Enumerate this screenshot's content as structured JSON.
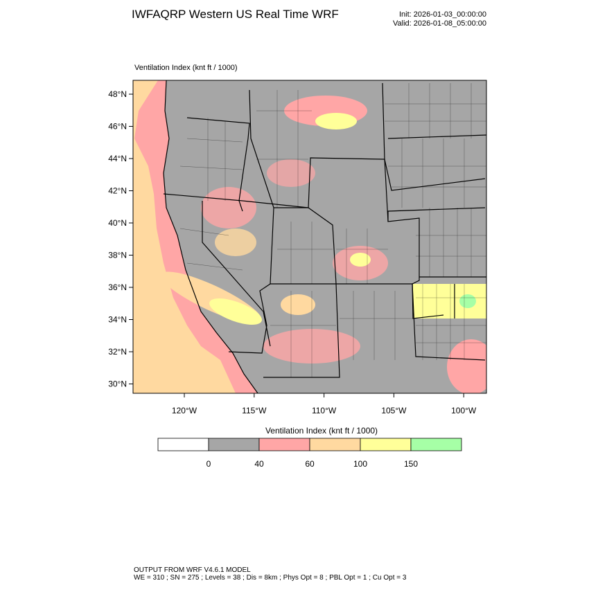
{
  "header": {
    "title": "IWFAQRP Western US Real Time WRF",
    "init": "Init: 2026-01-03_00:00:00",
    "valid": "Valid: 2026-01-08_05:00:00"
  },
  "map": {
    "field_label": "Ventilation Index   (knt ft / 1000)",
    "lat_labels": [
      "48°N",
      "46°N",
      "44°N",
      "42°N",
      "40°N",
      "38°N",
      "36°N",
      "34°N",
      "32°N",
      "30°N"
    ],
    "lon_labels": [
      "120°W",
      "115°W",
      "110°W",
      "105°W",
      "100°W"
    ]
  },
  "colorbar": {
    "title": "Ventilation Index   (knt ft / 1000)",
    "colors": [
      "#ffffff",
      "#a6a6a6",
      "#ffa6a6",
      "#ffd9a0",
      "#ffff99",
      "#a6ffa6"
    ],
    "labels": [
      0,
      40,
      60,
      100,
      150
    ]
  },
  "footer": {
    "line1": "OUTPUT FROM WRF V4.6.1 MODEL",
    "line2": "WE = 310 ; SN = 275 ; Levels = 38 ; Dis = 8km ; Phys Opt = 8 ; PBL Opt = 1 ; Cu Opt = 3"
  }
}
